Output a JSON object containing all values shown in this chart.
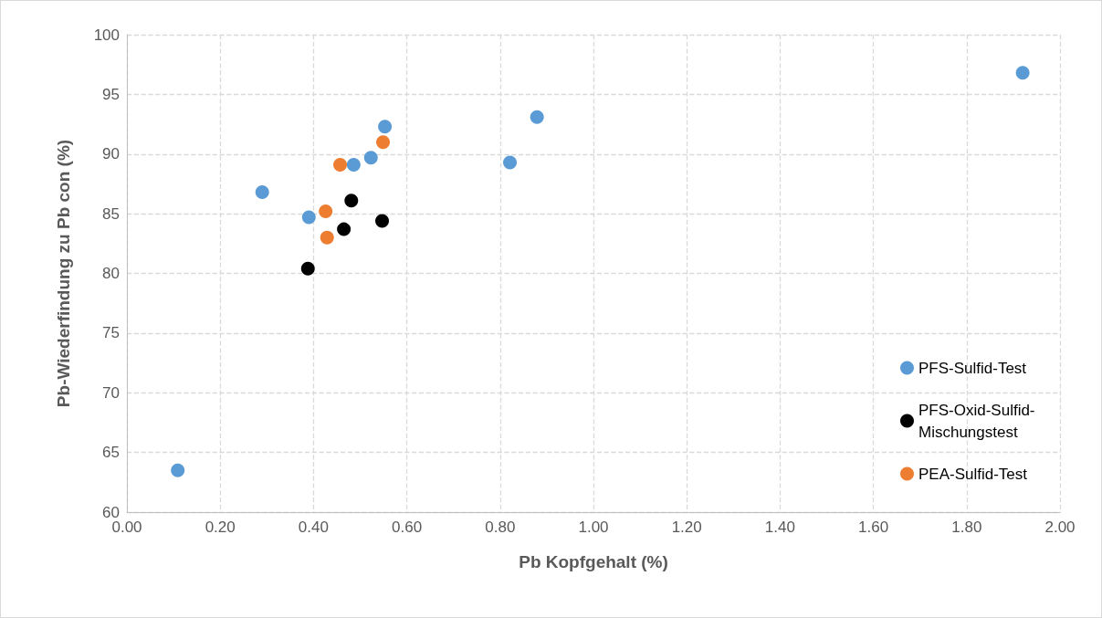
{
  "chart_data": {
    "type": "scatter",
    "xlabel": "Pb Kopfgehalt (%)",
    "ylabel": "Pb-Wiederfindung zu Pb con (%)",
    "xlim": [
      0,
      2
    ],
    "xticks": [
      {
        "value": 0,
        "label": "0.00"
      },
      {
        "value": 0.2,
        "label": "0.20"
      },
      {
        "value": 0.4,
        "label": "0.40"
      },
      {
        "value": 0.6,
        "label": "0.60"
      },
      {
        "value": 0.8,
        "label": "0.80"
      },
      {
        "value": 1,
        "label": "1.00"
      },
      {
        "value": 1.2,
        "label": "1.20"
      },
      {
        "value": 1.4,
        "label": "1.40"
      },
      {
        "value": 1.6,
        "label": "1.60"
      },
      {
        "value": 1.8,
        "label": "1.80"
      },
      {
        "value": 2,
        "label": "2.00"
      }
    ],
    "ylim": [
      60,
      100
    ],
    "yticks": [
      60,
      65,
      70,
      75,
      80,
      85,
      90,
      95,
      100
    ],
    "grid": true,
    "legend": "bottom right",
    "marker": "circle",
    "series": [
      {
        "name": "PFS-Sulfid-Test",
        "color": "#5b9bd5",
        "x": [
          0.109,
          0.29,
          0.39,
          0.486,
          0.523,
          0.553,
          0.821,
          0.879,
          1.92
        ],
        "values": [
          63.5,
          86.8,
          84.7,
          89.1,
          89.7,
          92.3,
          89.3,
          93.1,
          96.8
        ]
      },
      {
        "name": "PFS-Oxid-Sulfid-Mischungstest",
        "color": "#000000",
        "x": [
          0.388,
          0.465,
          0.481,
          0.547
        ],
        "values": [
          80.4,
          83.7,
          86.1,
          84.4
        ]
      },
      {
        "name": "PEA-Sulfid-Test",
        "color": "#ed7d31",
        "x": [
          0.426,
          0.429,
          0.457,
          0.549
        ],
        "values": [
          85.2,
          83.0,
          89.1,
          91.0
        ]
      }
    ]
  }
}
